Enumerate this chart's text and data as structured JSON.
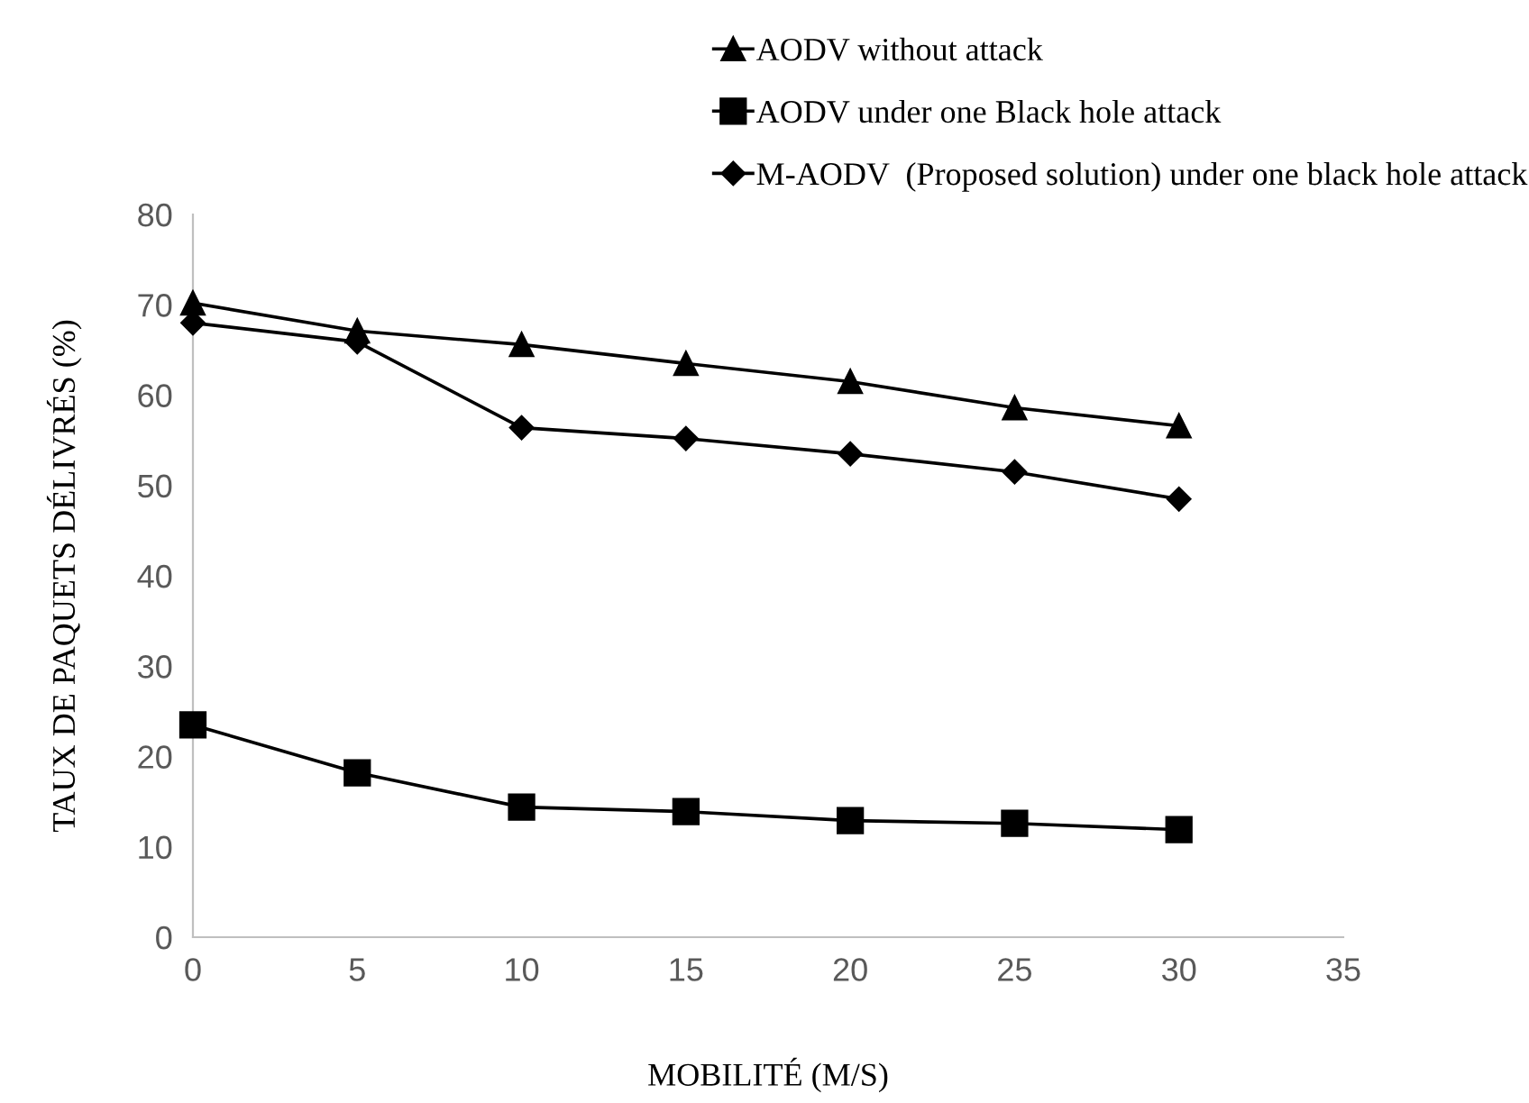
{
  "chart_data": {
    "type": "line",
    "xlabel": "MOBILITÉ (M/S)",
    "ylabel": "TAUX DE PAQUETS DÉLIVRÉS (%)",
    "x": [
      0,
      5,
      10,
      15,
      20,
      25,
      30
    ],
    "series": [
      {
        "name": "AODV without attack",
        "color": "#000000",
        "marker": "triangle",
        "values": [
          70.2,
          67.1,
          65.6,
          63.5,
          61.5,
          58.6,
          56.6
        ]
      },
      {
        "name": "AODV under one Black hole attack",
        "color": "#000000",
        "marker": "square",
        "values": [
          23.5,
          18.2,
          14.4,
          13.9,
          12.9,
          12.6,
          11.9
        ]
      },
      {
        "name": "M-AODV  (Proposed solution) under one black hole attack",
        "color": "#000000",
        "marker": "diamond",
        "values": [
          68.0,
          65.9,
          56.4,
          55.2,
          53.5,
          51.5,
          48.5
        ]
      }
    ],
    "xlim": [
      0,
      35
    ],
    "xticks": [
      0,
      5,
      10,
      15,
      20,
      25,
      30,
      35
    ],
    "ylim": [
      0,
      80
    ],
    "yticks": [
      0,
      10,
      20,
      30,
      40,
      50,
      60,
      70,
      80
    ],
    "grid": false,
    "legend": "top right",
    "line_style": "solid"
  }
}
